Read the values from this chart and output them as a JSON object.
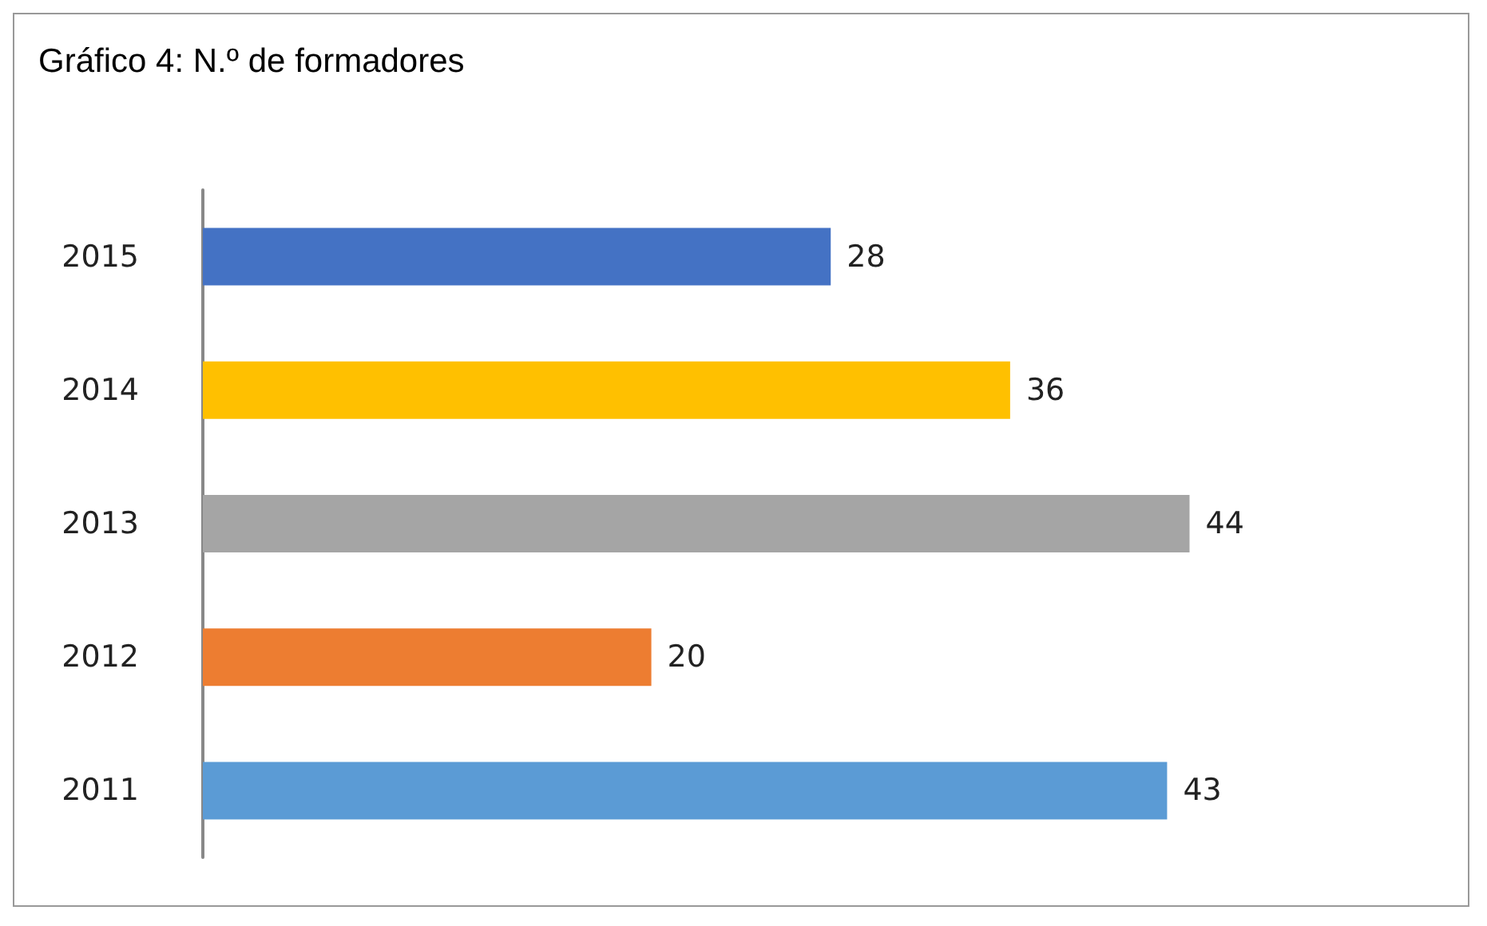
{
  "chart_data": {
    "type": "bar",
    "title": "Gráfico 4: N.º de formadores",
    "orientation": "horizontal",
    "categories": [
      "2015",
      "2014",
      "2013",
      "2012",
      "2011"
    ],
    "values": [
      28,
      36,
      44,
      20,
      43
    ],
    "colors": [
      "#4472c4",
      "#ffc000",
      "#a5a5a5",
      "#ed7d31",
      "#5b9bd5"
    ],
    "data_labels": true
  }
}
